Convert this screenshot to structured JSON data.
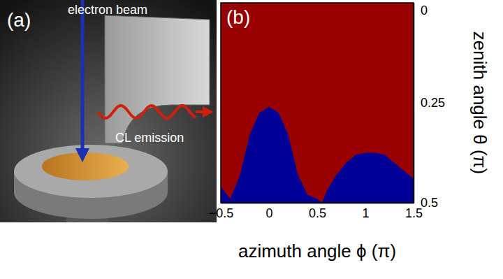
{
  "chart_data": {
    "type": "area",
    "title": "(b)",
    "x_label": "azimuth angle ϕ (π)",
    "y_label": "zenith angle θ (π)",
    "x": [
      -0.5,
      -0.4,
      -0.3,
      -0.2,
      -0.1,
      0,
      0.1,
      0.2,
      0.3,
      0.4,
      0.5,
      0.55,
      0.6,
      0.7,
      0.8,
      0.9,
      1.0,
      1.1,
      1.2,
      1.3,
      1.4,
      1.5
    ],
    "values": [
      0.46,
      0.49,
      0.43,
      0.33,
      0.275,
      0.26,
      0.275,
      0.33,
      0.43,
      0.48,
      0.49,
      0.5,
      0.47,
      0.43,
      0.4,
      0.38,
      0.375,
      0.375,
      0.38,
      0.4,
      0.42,
      0.44
    ],
    "color": "#000096",
    "xlim": [
      -0.5,
      1.5
    ],
    "ylim": [
      0,
      0.5
    ],
    "xticks": [
      {
        "value": -0.5,
        "label": "−0.5"
      },
      0,
      0.5,
      1,
      1.5
    ],
    "yticks": [
      0,
      0.25,
      0.5
    ]
  },
  "illustration": {
    "label": "(a)",
    "annotations": [
      "electron beam",
      "CL emission"
    ]
  }
}
